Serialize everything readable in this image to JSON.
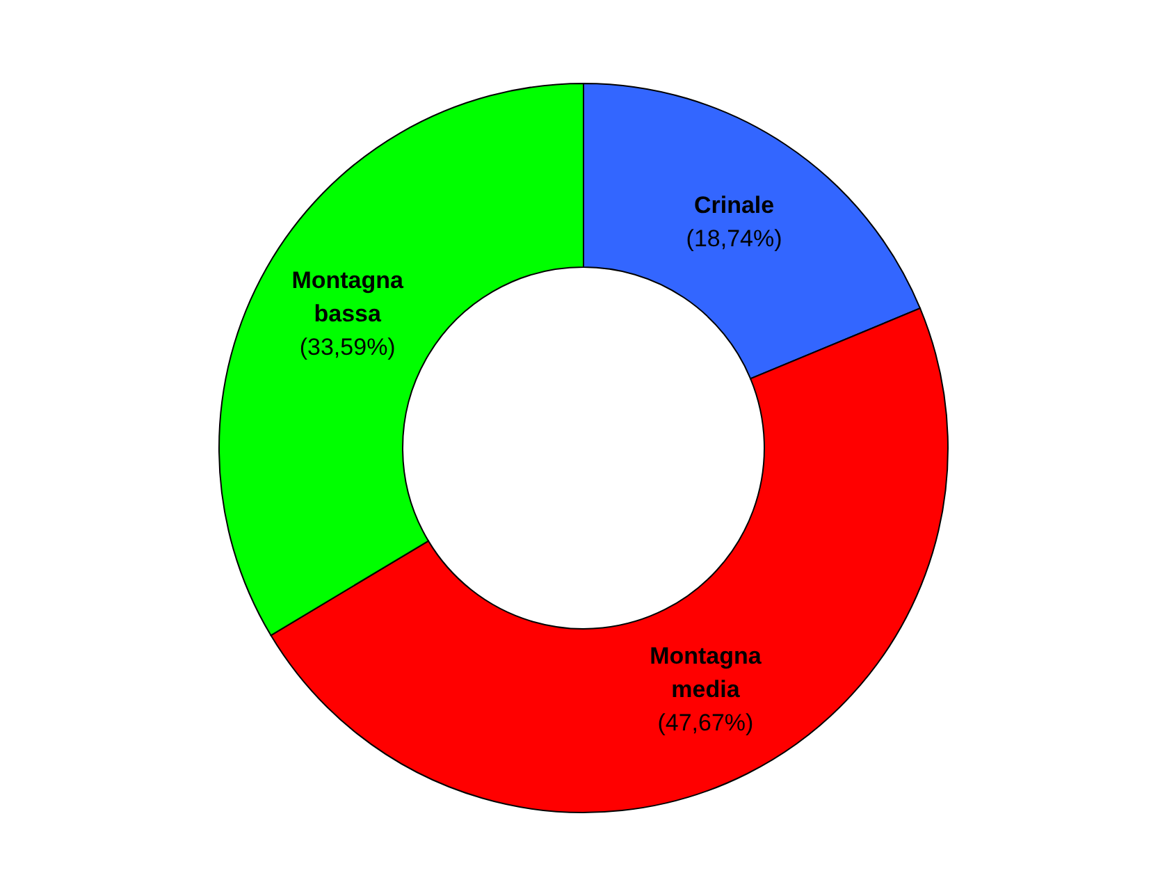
{
  "chart_data": {
    "type": "donut",
    "categories": [
      "Crinale",
      "Montagna media",
      "Montagna bassa"
    ],
    "values": [
      18.74,
      47.67,
      33.59
    ],
    "colors": [
      "#3366ff",
      "#ff0000",
      "#00ff00"
    ],
    "value_labels": [
      "(18,74%)",
      "(47,67%)",
      "(33,59%)"
    ],
    "legend": false
  }
}
